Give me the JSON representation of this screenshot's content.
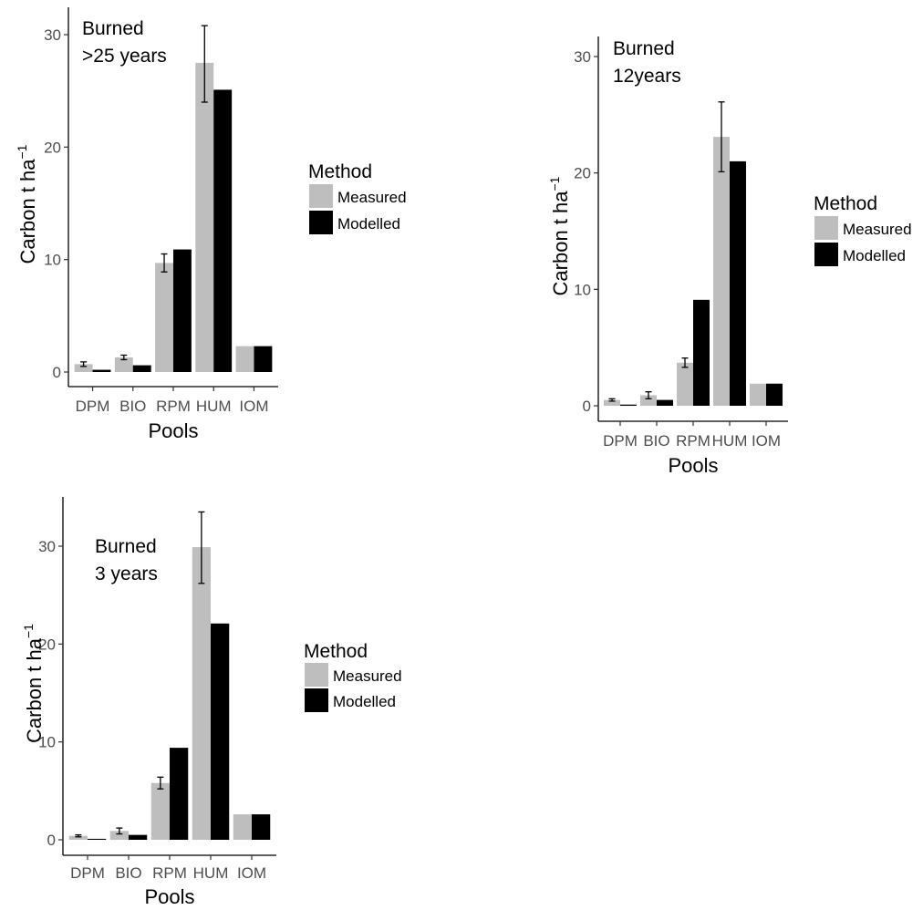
{
  "colors": {
    "Measured": "#bebebe",
    "Modelled": "#000000",
    "axis": "#000000",
    "tick_label": "#4d4d4d"
  },
  "chart_data": [
    {
      "type": "bar",
      "panel_label": [
        "Burned",
        ">25 years"
      ],
      "categories": [
        "DPM",
        "BIO",
        "RPM",
        "HUM",
        "IOM"
      ],
      "xlabel": "Pools",
      "ylabel": "Carbon t ha",
      "ylabel_superscript": "−1",
      "ylim": [
        0,
        31.3
      ],
      "yticks": [
        0,
        10,
        20,
        30
      ],
      "legend_title": "Method",
      "legend_position": "right",
      "grid": false,
      "series": [
        {
          "name": "Measured",
          "values": [
            0.7,
            1.3,
            9.7,
            27.5,
            2.3
          ],
          "errors": [
            [
              0.5,
              0.9
            ],
            [
              1.1,
              1.5
            ],
            [
              8.9,
              10.5
            ],
            [
              24.0,
              30.8
            ],
            null
          ]
        },
        {
          "name": "Modelled",
          "values": [
            0.2,
            0.6,
            10.9,
            25.1,
            2.3
          ]
        }
      ]
    },
    {
      "type": "bar",
      "panel_label": [
        "Burned",
        "12years"
      ],
      "categories": [
        "DPM",
        "BIO",
        "RPM",
        "HUM",
        "IOM"
      ],
      "xlabel": "Pools",
      "ylabel": "Carbon t ha",
      "ylabel_superscript": "−1",
      "ylim": [
        0,
        31.0
      ],
      "yticks": [
        0,
        10,
        20,
        30
      ],
      "legend_title": "Method",
      "legend_position": "right",
      "grid": false,
      "series": [
        {
          "name": "Measured",
          "values": [
            0.5,
            0.9,
            3.7,
            23.1,
            1.9
          ],
          "errors": [
            [
              0.4,
              0.6
            ],
            [
              0.6,
              1.2
            ],
            [
              3.3,
              4.1
            ],
            [
              20.1,
              26.1
            ],
            null
          ]
        },
        {
          "name": "Modelled",
          "values": [
            0.1,
            0.5,
            9.1,
            21.0,
            1.9
          ]
        }
      ]
    },
    {
      "type": "bar",
      "panel_label": [
        "Burned",
        "3 years"
      ],
      "categories": [
        "DPM",
        "BIO",
        "RPM",
        "HUM",
        "IOM"
      ],
      "xlabel": "Pools",
      "ylabel": "Carbon t ha",
      "ylabel_superscript": "−1",
      "ylim": [
        0,
        35.0
      ],
      "yticks": [
        0,
        10,
        20,
        30
      ],
      "legend_title": "Method",
      "legend_position": "right",
      "grid": false,
      "series": [
        {
          "name": "Measured",
          "values": [
            0.4,
            0.9,
            5.8,
            29.9,
            2.6
          ],
          "errors": [
            [
              0.3,
              0.5
            ],
            [
              0.6,
              1.2
            ],
            [
              5.2,
              6.4
            ],
            [
              26.2,
              33.5
            ],
            null
          ]
        },
        {
          "name": "Modelled",
          "values": [
            0.1,
            0.5,
            9.4,
            22.1,
            2.6
          ]
        }
      ]
    }
  ]
}
